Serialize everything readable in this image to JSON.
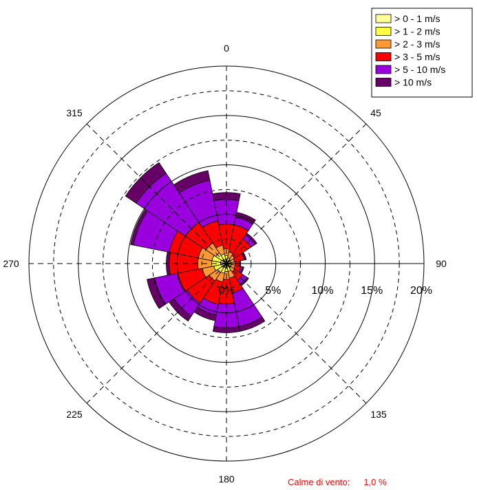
{
  "chart_data": {
    "type": "windrose",
    "directions_deg": [
      0,
      22.5,
      45,
      67.5,
      90,
      112.5,
      135,
      157.5,
      180,
      202.5,
      225,
      247.5,
      270,
      292.5,
      315,
      337.5
    ],
    "direction_labels": [
      "0",
      "45",
      "90",
      "135",
      "180",
      "225",
      "270",
      "315"
    ],
    "ring_labels": [
      "0%",
      "5%",
      "10%",
      "15%",
      "20%"
    ],
    "rmax_percent": 20,
    "series": [
      {
        "name": "> 0 - 1   m/s",
        "color": "#ffff99",
        "values": [
          0.3,
          0.2,
          0.2,
          0.15,
          0.2,
          0.2,
          0.2,
          0.3,
          0.3,
          0.4,
          0.4,
          0.5,
          0.6,
          0.6,
          0.5,
          0.4
        ]
      },
      {
        "name": "> 1 - 2   m/s",
        "color": "#ffff40",
        "values": [
          0.5,
          0.4,
          0.3,
          0.3,
          0.3,
          0.3,
          0.3,
          0.5,
          0.5,
          0.6,
          0.7,
          0.8,
          0.9,
          0.9,
          0.8,
          0.6
        ]
      },
      {
        "name": "> 2 - 3   m/s",
        "color": "#ff9933",
        "values": [
          0.7,
          0.6,
          0.5,
          0.4,
          0.4,
          0.4,
          0.5,
          0.7,
          0.8,
          0.9,
          1.0,
          1.2,
          1.4,
          1.4,
          1.2,
          0.9
        ]
      },
      {
        "name": "> 3 - 5   m/s",
        "color": "#ff0000",
        "values": [
          2.5,
          2.8,
          2.0,
          1.0,
          0.4,
          0.6,
          1.0,
          1.5,
          2.5,
          2.3,
          2.7,
          2.6,
          2.9,
          3.0,
          2.5,
          2.5
        ]
      },
      {
        "name": "> 5 - 10 m/s",
        "color": "#9900dd",
        "values": [
          2.5,
          0.8,
          0.5,
          0.1,
          0.1,
          0.2,
          0.5,
          3.5,
          2.4,
          1.1,
          1.6,
          2.3,
          0,
          3.7,
          6.0,
          4.2
        ]
      },
      {
        "name": "> 10 m/s",
        "color": "#660066",
        "values": [
          0.7,
          0.5,
          0.2,
          0.1,
          0.05,
          0.1,
          0.2,
          0.5,
          0.5,
          0.6,
          0.6,
          0.8,
          0.3,
          0.3,
          1.3,
          1.0
        ]
      }
    ],
    "calm_label": "Calme di vento:",
    "calm_value": "1,0 %"
  }
}
